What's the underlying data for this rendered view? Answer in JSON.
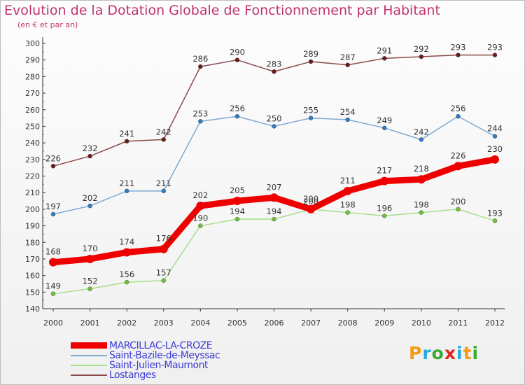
{
  "title": "Evolution de la Dotation Globale de Fonctionnement par Habitant",
  "subtitle": "(en € et par an)",
  "logo": {
    "letters": [
      "P",
      "r",
      "o",
      "x",
      "i",
      "t",
      "i"
    ],
    "colors": [
      "#f39c12",
      "#27a9e1",
      "#3aaa35",
      "#e2261d",
      "#27a9e1",
      "#f39c12",
      "#3aaa35"
    ]
  },
  "chart_data": {
    "type": "line",
    "title": "Evolution de la Dotation Globale de Fonctionnement par Habitant",
    "subtitle": "(en € et par an)",
    "x": [
      "2000",
      "2001",
      "2002",
      "2003",
      "2004",
      "2005",
      "2006",
      "2007",
      "2008",
      "2009",
      "2010",
      "2011",
      "2012"
    ],
    "ylim": [
      140,
      300
    ],
    "yticks": [
      140,
      150,
      160,
      170,
      180,
      190,
      200,
      210,
      220,
      230,
      240,
      250,
      260,
      270,
      280,
      290,
      300
    ],
    "grid": false,
    "legend_position": "bottom-left",
    "series": [
      {
        "name": "MARCILLAC-LA-CROZE",
        "color": "#ee0000",
        "values": [
          168,
          170,
          174,
          176,
          202,
          205,
          207,
          200,
          211,
          217,
          218,
          226,
          230
        ],
        "emphasis": true
      },
      {
        "name": "Saint-Bazile-de-Meyssac",
        "color": "#7fa9d4",
        "marker_color": "#2f7dc4",
        "values": [
          197,
          202,
          211,
          211,
          253,
          256,
          250,
          255,
          254,
          249,
          242,
          256,
          244
        ]
      },
      {
        "name": "Saint-Julien-Maumont",
        "color": "#a8df8a",
        "marker_color": "#6cc23a",
        "values": [
          149,
          152,
          156,
          157,
          190,
          194,
          194,
          200,
          198,
          196,
          198,
          200,
          193
        ]
      },
      {
        "name": "Lostanges",
        "color": "#8a4a4a",
        "marker_color": "#6b1a1a",
        "values": [
          226,
          232,
          241,
          242,
          286,
          290,
          283,
          289,
          287,
          291,
          292,
          293,
          293
        ]
      }
    ]
  }
}
